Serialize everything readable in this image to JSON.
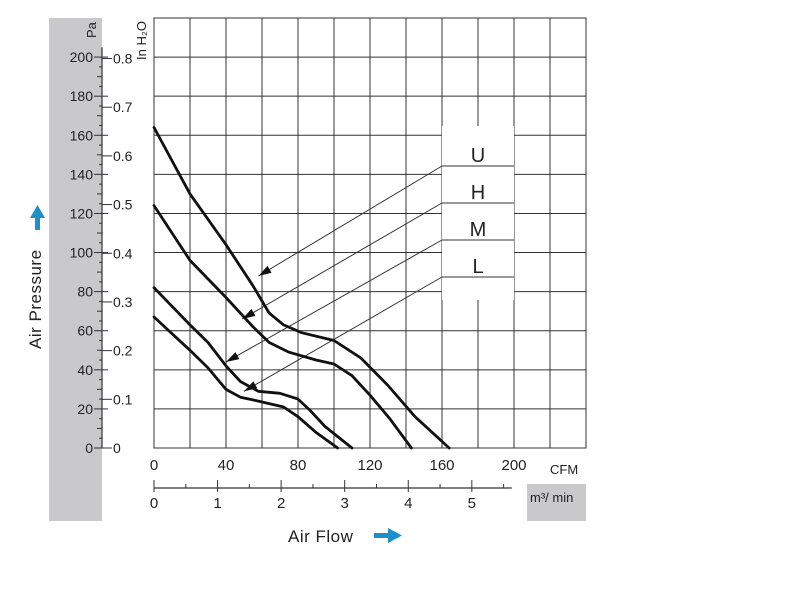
{
  "chart_data": {
    "type": "line",
    "title": "",
    "xlabel": "Air Flow",
    "ylabel": "Air Pressure",
    "x_unit_primary": "CFM",
    "x_unit_secondary": "m³/ min",
    "y_unit_primary": "Pa",
    "y_unit_secondary": "In H₂O",
    "x_ticks_cfm": [
      "0",
      "40",
      "80",
      "120",
      "160",
      "200"
    ],
    "x_ticks_m3min": [
      "0",
      "1",
      "2",
      "3",
      "4",
      "5"
    ],
    "y_ticks_pa": [
      "0",
      "20",
      "40",
      "60",
      "80",
      "100",
      "120",
      "140",
      "160",
      "180",
      "200"
    ],
    "y_ticks_inh2o": [
      "0",
      "0.1",
      "0.2",
      "0.3",
      "0.4",
      "0.5",
      "0.6",
      "0.7",
      "0.8"
    ],
    "xlim": [
      0,
      240
    ],
    "ylim": [
      0,
      220
    ],
    "grid": true,
    "legend_position": "right",
    "series": [
      {
        "name": "U",
        "points": [
          [
            0,
            164
          ],
          [
            20,
            130
          ],
          [
            40,
            104
          ],
          [
            55,
            83
          ],
          [
            64,
            69
          ],
          [
            72,
            63
          ],
          [
            82,
            59
          ],
          [
            100,
            55
          ],
          [
            115,
            46
          ],
          [
            130,
            32
          ],
          [
            145,
            16
          ],
          [
            164,
            0
          ]
        ]
      },
      {
        "name": "H",
        "points": [
          [
            0,
            124
          ],
          [
            20,
            96
          ],
          [
            40,
            77
          ],
          [
            55,
            62
          ],
          [
            64,
            54
          ],
          [
            75,
            49
          ],
          [
            90,
            45
          ],
          [
            100,
            43
          ],
          [
            110,
            37
          ],
          [
            120,
            27
          ],
          [
            131,
            15
          ],
          [
            143,
            0
          ]
        ]
      },
      {
        "name": "M",
        "points": [
          [
            0,
            82
          ],
          [
            20,
            63
          ],
          [
            30,
            54
          ],
          [
            40,
            42
          ],
          [
            48,
            34
          ],
          [
            58,
            29
          ],
          [
            70,
            28
          ],
          [
            80,
            25
          ],
          [
            87,
            19
          ],
          [
            95,
            11
          ],
          [
            110,
            0
          ]
        ]
      },
      {
        "name": "L",
        "points": [
          [
            0,
            67
          ],
          [
            20,
            50
          ],
          [
            30,
            41
          ],
          [
            40,
            30
          ],
          [
            48,
            26
          ],
          [
            58,
            24
          ],
          [
            72,
            21
          ],
          [
            80,
            16
          ],
          [
            90,
            8
          ],
          [
            102,
            0
          ]
        ]
      }
    ]
  }
}
